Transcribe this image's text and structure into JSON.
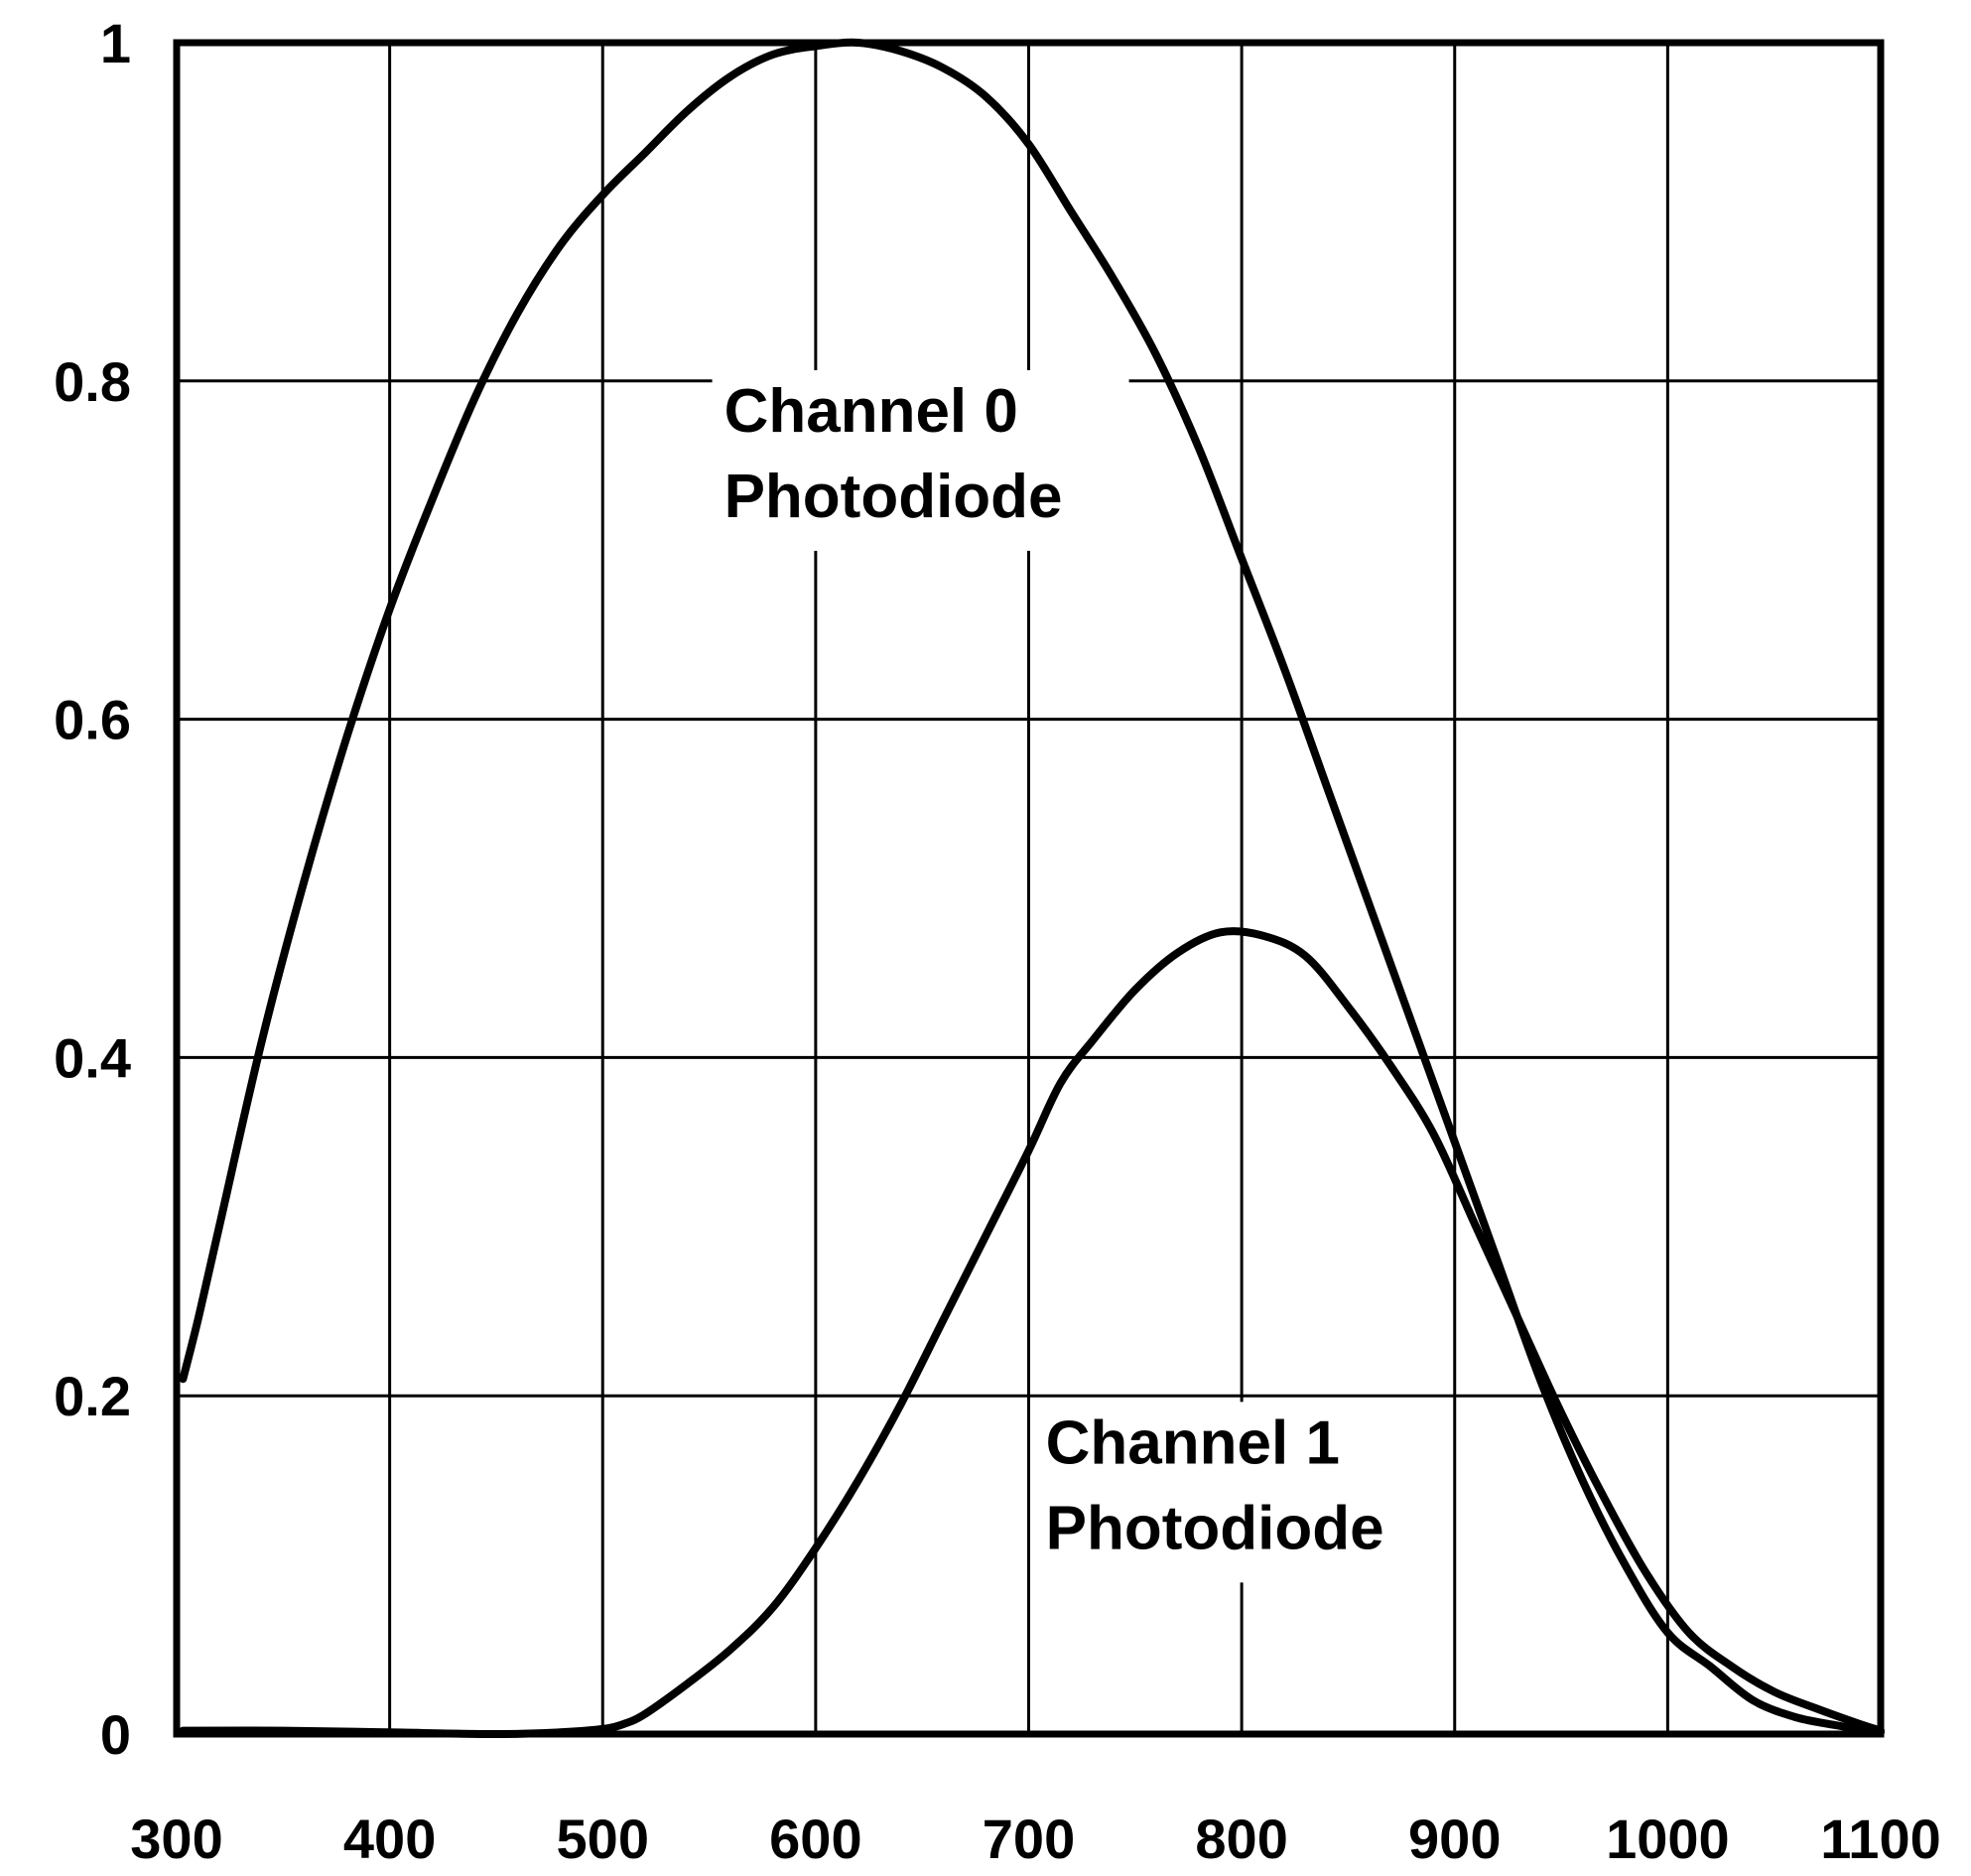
{
  "chart_data": {
    "type": "line",
    "title": "",
    "xlabel": "",
    "ylabel": "",
    "xlim": [
      300,
      1100
    ],
    "ylim": [
      0,
      1
    ],
    "grid": true,
    "x_ticks": [
      300,
      400,
      500,
      600,
      700,
      800,
      900,
      1000,
      1100
    ],
    "y_ticks": [
      0,
      0.2,
      0.4,
      0.6,
      0.8,
      1
    ],
    "x_tick_labels": [
      "300",
      "400",
      "500",
      "600",
      "700",
      "800",
      "900",
      "1000",
      "1100"
    ],
    "y_tick_labels": [
      "0",
      "0.2",
      "0.4",
      "0.6",
      "0.8",
      "1"
    ],
    "series_color": "#000000",
    "series": [
      {
        "label_lines": [
          "Channel 0",
          "Photodiode"
        ],
        "label_anchor": [
          557,
          0.77
        ],
        "x": [
          303,
          310,
          320,
          340,
          360,
          380,
          400,
          420,
          440,
          460,
          480,
          500,
          520,
          540,
          560,
          580,
          600,
          620,
          640,
          660,
          680,
          700,
          720,
          740,
          760,
          780,
          800,
          820,
          840,
          860,
          880,
          900,
          920,
          940,
          960,
          980,
          1000,
          1020,
          1040,
          1060,
          1080,
          1100
        ],
        "y": [
          0.21,
          0.245,
          0.3,
          0.41,
          0.505,
          0.59,
          0.665,
          0.73,
          0.79,
          0.84,
          0.88,
          0.91,
          0.935,
          0.96,
          0.98,
          0.993,
          0.998,
          1.0,
          0.995,
          0.985,
          0.968,
          0.94,
          0.9,
          0.86,
          0.815,
          0.76,
          0.695,
          0.63,
          0.56,
          0.49,
          0.42,
          0.35,
          0.28,
          0.21,
          0.15,
          0.1,
          0.06,
          0.04,
          0.02,
          0.01,
          0.005,
          0.001
        ]
      },
      {
        "label_lines": [
          "Channel 1",
          "Photodiode"
        ],
        "label_anchor": [
          708,
          0.16
        ],
        "x": [
          303,
          350,
          400,
          450,
          480,
          500,
          510,
          520,
          540,
          560,
          580,
          600,
          620,
          640,
          660,
          680,
          700,
          715,
          730,
          750,
          770,
          790,
          810,
          830,
          850,
          870,
          890,
          910,
          930,
          950,
          970,
          990,
          1010,
          1030,
          1050,
          1070,
          1090,
          1100
        ],
        "y": [
          0.002,
          0.002,
          0.001,
          0.0,
          0.001,
          0.003,
          0.006,
          0.012,
          0.03,
          0.05,
          0.075,
          0.11,
          0.15,
          0.195,
          0.245,
          0.295,
          0.345,
          0.385,
          0.41,
          0.44,
          0.462,
          0.474,
          0.472,
          0.46,
          0.43,
          0.395,
          0.355,
          0.3,
          0.245,
          0.19,
          0.14,
          0.095,
          0.06,
          0.04,
          0.025,
          0.015,
          0.006,
          0.002
        ]
      }
    ]
  }
}
